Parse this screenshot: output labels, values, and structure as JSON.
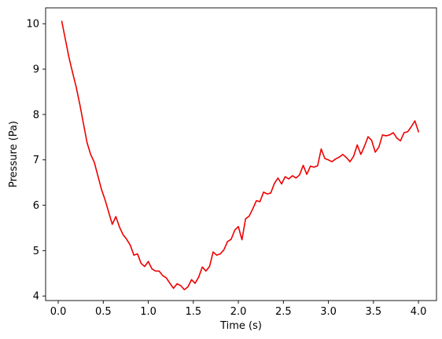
{
  "chart_data": {
    "type": "line",
    "title": "",
    "xlabel": "Time (s)",
    "ylabel": "Pressure (Pa)",
    "xlim": [
      -0.14,
      4.2
    ],
    "ylim": [
      3.9,
      10.35
    ],
    "xticks": [
      0.0,
      0.5,
      1.0,
      1.5,
      2.0,
      2.5,
      3.0,
      3.5,
      4.0
    ],
    "xtick_labels": [
      "0.0",
      "0.5",
      "1.0",
      "1.5",
      "2.0",
      "2.5",
      "3.0",
      "3.5",
      "4.0"
    ],
    "yticks": [
      4,
      5,
      6,
      7,
      8,
      9,
      10
    ],
    "ytick_labels": [
      "4",
      "5",
      "6",
      "7",
      "8",
      "9",
      "10"
    ],
    "grid": false,
    "legend": false,
    "series": [
      {
        "color": "#ee0000",
        "x": [
          0.04,
          0.08,
          0.12,
          0.16,
          0.2,
          0.24,
          0.28,
          0.32,
          0.36,
          0.4,
          0.44,
          0.48,
          0.52,
          0.56,
          0.6,
          0.64,
          0.68,
          0.72,
          0.76,
          0.8,
          0.84,
          0.88,
          0.92,
          0.96,
          1.0,
          1.04,
          1.08,
          1.12,
          1.16,
          1.2,
          1.24,
          1.28,
          1.32,
          1.36,
          1.4,
          1.44,
          1.48,
          1.52,
          1.56,
          1.6,
          1.64,
          1.68,
          1.72,
          1.76,
          1.8,
          1.84,
          1.88,
          1.92,
          1.96,
          2.0,
          2.04,
          2.08,
          2.12,
          2.16,
          2.2,
          2.24,
          2.28,
          2.32,
          2.36,
          2.4,
          2.44,
          2.48,
          2.52,
          2.56,
          2.6,
          2.64,
          2.68,
          2.72,
          2.76,
          2.8,
          2.84,
          2.88,
          2.92,
          2.96,
          3.0,
          3.04,
          3.08,
          3.12,
          3.16,
          3.2,
          3.24,
          3.28,
          3.32,
          3.36,
          3.4,
          3.44,
          3.48,
          3.52,
          3.56,
          3.6,
          3.64,
          3.68,
          3.72,
          3.76,
          3.8,
          3.84,
          3.88,
          3.92,
          3.96,
          4.0
        ],
        "y": [
          10.05,
          9.65,
          9.25,
          8.92,
          8.6,
          8.22,
          7.8,
          7.38,
          7.12,
          6.95,
          6.65,
          6.35,
          6.12,
          5.85,
          5.58,
          5.75,
          5.52,
          5.35,
          5.25,
          5.12,
          4.9,
          4.93,
          4.72,
          4.65,
          4.76,
          4.6,
          4.55,
          4.55,
          4.45,
          4.4,
          4.28,
          4.17,
          4.27,
          4.23,
          4.14,
          4.2,
          4.36,
          4.28,
          4.42,
          4.64,
          4.55,
          4.65,
          4.97,
          4.9,
          4.93,
          5.02,
          5.2,
          5.25,
          5.45,
          5.53,
          5.24,
          5.7,
          5.76,
          5.92,
          6.1,
          6.08,
          6.29,
          6.25,
          6.27,
          6.48,
          6.6,
          6.47,
          6.63,
          6.58,
          6.65,
          6.6,
          6.67,
          6.88,
          6.68,
          6.86,
          6.84,
          6.87,
          7.24,
          7.03,
          7.0,
          6.96,
          7.02,
          7.06,
          7.12,
          7.05,
          6.96,
          7.08,
          7.33,
          7.12,
          7.3,
          7.51,
          7.43,
          7.17,
          7.28,
          7.55,
          7.53,
          7.55,
          7.6,
          7.48,
          7.42,
          7.6,
          7.62,
          7.73,
          7.86,
          7.62
        ]
      }
    ]
  }
}
